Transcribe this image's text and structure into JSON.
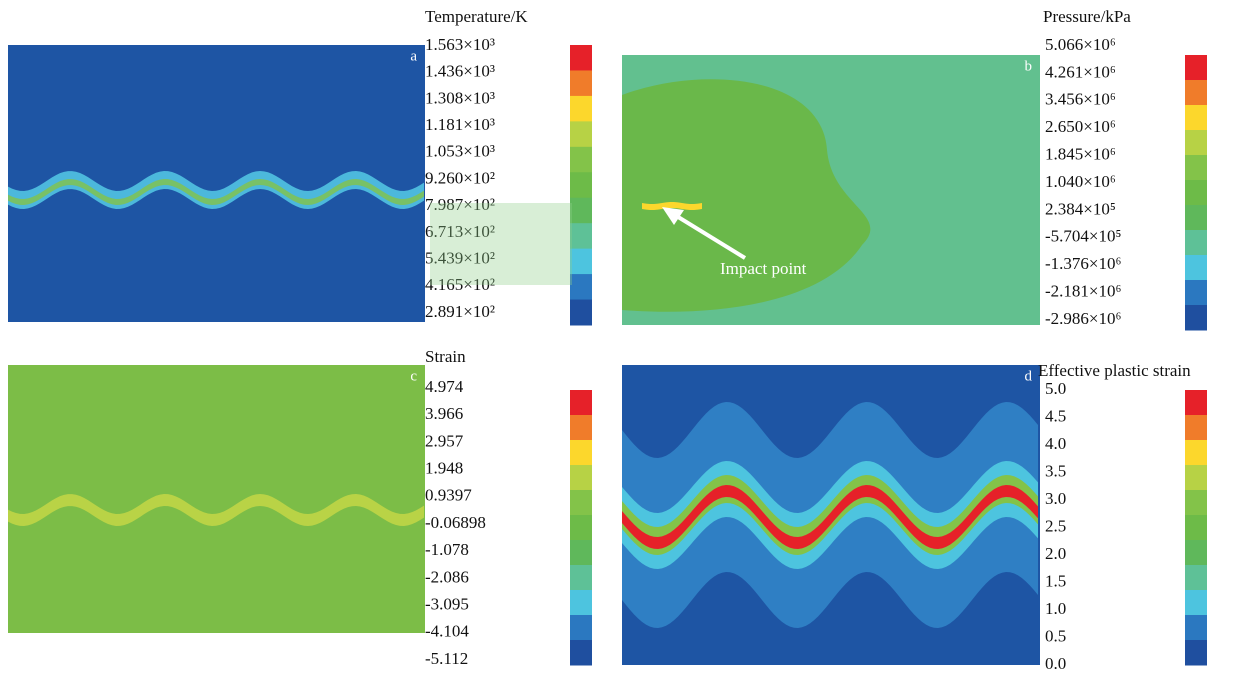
{
  "colors": [
    "#e62129",
    "#f07c2a",
    "#fcd72c",
    "#b7d245",
    "#83c349",
    "#6dbb48",
    "#5fb85b",
    "#5ec197",
    "#4dc4df",
    "#2b78c0",
    "#1f4f9f"
  ],
  "panels": [
    {
      "letter": "a",
      "title": "Temperature/K",
      "legend": [
        "1.563×10³",
        "1.436×10³",
        "1.308×10³",
        "1.181×10³",
        "1.053×10³",
        "9.260×10²",
        "7.987×10²",
        "6.713×10²",
        "5.439×10²",
        "4.165×10²",
        "2.891×10²"
      ]
    },
    {
      "letter": "b",
      "title": "Pressure/kPa",
      "legend": [
        "5.066×10⁶",
        "4.261×10⁶",
        "3.456×10⁶",
        "2.650×10⁶",
        "1.845×10⁶",
        "1.040×10⁶",
        "2.384×10⁵",
        "-5.704×10⁵",
        "-1.376×10⁶",
        "-2.181×10⁶",
        "-2.986×10⁶"
      ],
      "annotation": "Impact point"
    },
    {
      "letter": "c",
      "title": "Strain",
      "legend": [
        "4.974",
        "3.966",
        "2.957",
        "1.948",
        "0.9397",
        "-0.06898",
        "-1.078",
        "-2.086",
        "-3.095",
        "-4.104",
        "-5.112"
      ]
    },
    {
      "letter": "d",
      "title": "Effective plastic strain",
      "legend": [
        "5.0",
        "4.5",
        "4.0",
        "3.5",
        "3.0",
        "2.5",
        "2.0",
        "1.5",
        "1.0",
        "0.5",
        "0.0"
      ]
    }
  ]
}
